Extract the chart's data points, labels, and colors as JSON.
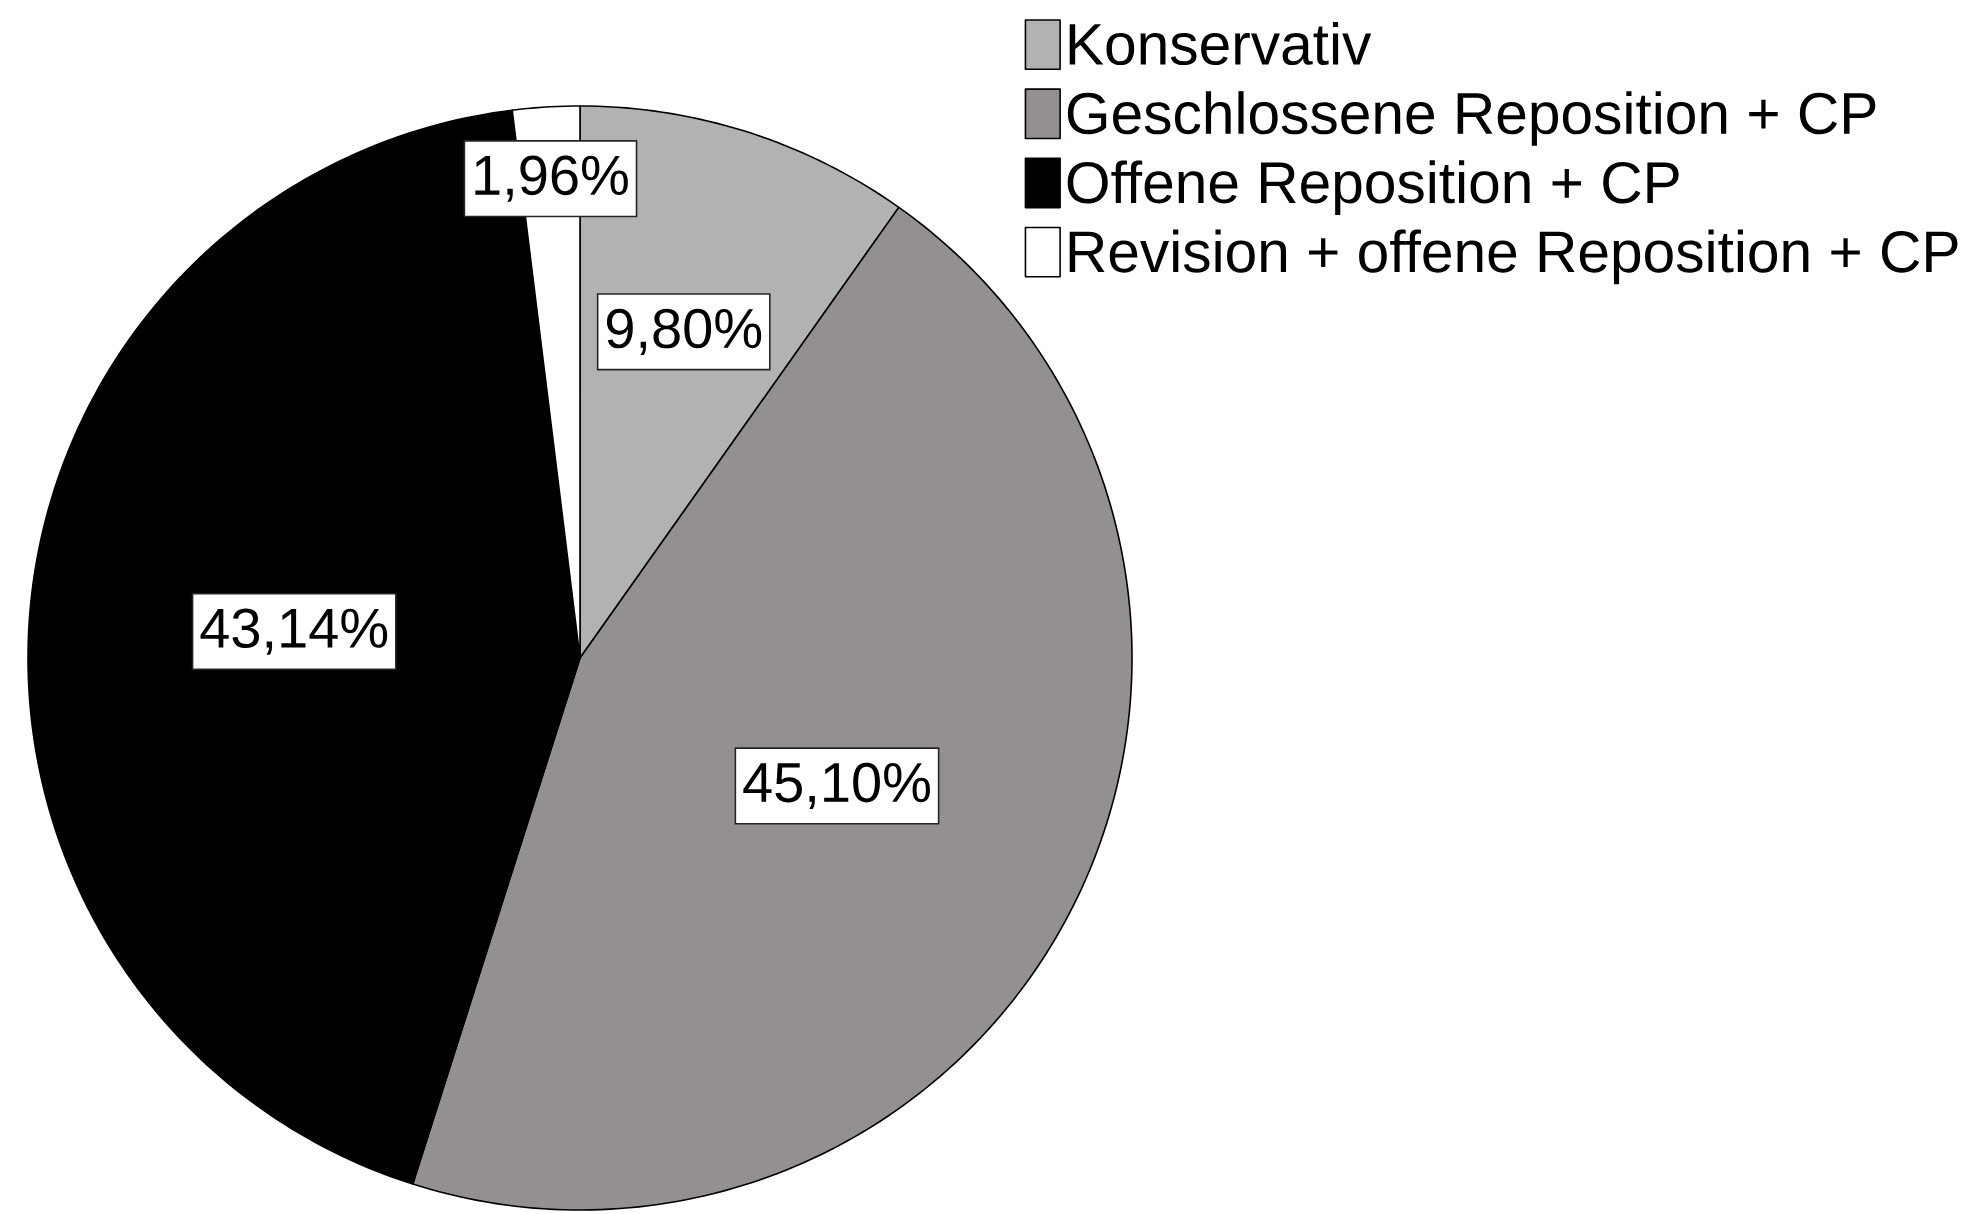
{
  "chart_data": {
    "type": "pie",
    "categories": [
      "Konservativ",
      "Geschlossene Reposition + CP",
      "Offene Reposition + CP",
      "Revision + offene Reposition + CP"
    ],
    "values": [
      9.8,
      45.1,
      43.14,
      1.96
    ],
    "colors": [
      "#b2b2b2",
      "#94908f",
      "#000000",
      "#ffffff"
    ],
    "value_labels": [
      "9,80%",
      "45,10%",
      "43,14%",
      "1,96%"
    ],
    "legend": "top right"
  }
}
